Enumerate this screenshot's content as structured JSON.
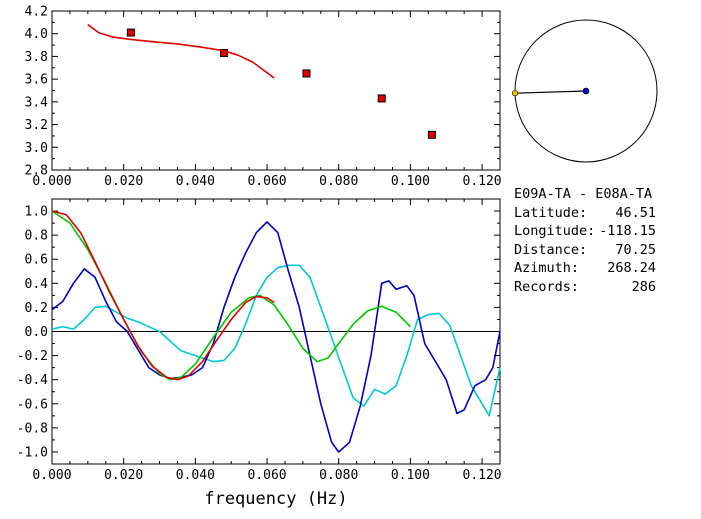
{
  "station": {
    "pair": "E09A-TA  -  E08A-TA",
    "fields": [
      {
        "label": "Latitude:",
        "value": "46.51"
      },
      {
        "label": "Longitude:",
        "value": "-118.15"
      },
      {
        "label": "Distance:",
        "value": "70.25"
      },
      {
        "label": "Azimuth:",
        "value": "268.24"
      },
      {
        "label": "Records:",
        "value": "286"
      }
    ]
  },
  "chart_data": [
    {
      "type": "scatter",
      "xlim": [
        0.0,
        0.125
      ],
      "ylim": [
        2.8,
        4.2
      ],
      "x_ticks": [
        "0.000",
        "0.020",
        "0.040",
        "0.060",
        "0.080",
        "0.100",
        "0.120"
      ],
      "y_ticks": [
        "2.8",
        "3.0",
        "3.2",
        "3.4",
        "3.6",
        "3.8",
        "4.0",
        "4.2"
      ],
      "series": [
        {
          "style": "markers",
          "color": "#e00000",
          "points": [
            [
              0.022,
              4.01
            ],
            [
              0.048,
              3.83
            ],
            [
              0.071,
              3.65
            ],
            [
              0.092,
              3.43
            ],
            [
              0.106,
              3.11
            ]
          ]
        },
        {
          "style": "line",
          "color": "#e00000",
          "points": [
            [
              0.01,
              4.08
            ],
            [
              0.013,
              4.01
            ],
            [
              0.017,
              3.97
            ],
            [
              0.022,
              3.95
            ],
            [
              0.028,
              3.93
            ],
            [
              0.035,
              3.91
            ],
            [
              0.042,
              3.88
            ],
            [
              0.048,
              3.85
            ],
            [
              0.052,
              3.81
            ],
            [
              0.056,
              3.75
            ],
            [
              0.059,
              3.68
            ],
            [
              0.062,
              3.61
            ]
          ]
        }
      ]
    },
    {
      "type": "line",
      "xlim": [
        0.0,
        0.125
      ],
      "ylim": [
        -1.1,
        1.1
      ],
      "xlabel": "frequency (Hz)",
      "x_ticks": [
        "0.000",
        "0.020",
        "0.040",
        "0.060",
        "0.080",
        "0.100",
        "0.120"
      ],
      "y_ticks": [
        "1.0",
        "0.8",
        "0.6",
        "0.4",
        "0.2",
        "0.0",
        "-0.2",
        "-0.4",
        "-0.6",
        "-0.8",
        "-1.0"
      ],
      "series": [
        {
          "color": "#00c8d8",
          "points": [
            [
              0.0,
              0.02
            ],
            [
              0.003,
              0.04
            ],
            [
              0.006,
              0.02
            ],
            [
              0.009,
              0.1
            ],
            [
              0.012,
              0.2
            ],
            [
              0.015,
              0.21
            ],
            [
              0.018,
              0.16
            ],
            [
              0.021,
              0.11
            ],
            [
              0.024,
              0.08
            ],
            [
              0.027,
              0.04
            ],
            [
              0.03,
              0.0
            ],
            [
              0.033,
              -0.08
            ],
            [
              0.036,
              -0.16
            ],
            [
              0.039,
              -0.19
            ],
            [
              0.042,
              -0.22
            ],
            [
              0.045,
              -0.25
            ],
            [
              0.048,
              -0.24
            ],
            [
              0.051,
              -0.14
            ],
            [
              0.054,
              0.06
            ],
            [
              0.057,
              0.3
            ],
            [
              0.06,
              0.45
            ],
            [
              0.063,
              0.53
            ],
            [
              0.066,
              0.55
            ],
            [
              0.069,
              0.55
            ],
            [
              0.072,
              0.45
            ],
            [
              0.075,
              0.2
            ],
            [
              0.078,
              -0.05
            ],
            [
              0.081,
              -0.3
            ],
            [
              0.084,
              -0.55
            ],
            [
              0.087,
              -0.62
            ],
            [
              0.09,
              -0.48
            ],
            [
              0.093,
              -0.52
            ],
            [
              0.096,
              -0.45
            ],
            [
              0.099,
              -0.2
            ],
            [
              0.102,
              0.1
            ],
            [
              0.105,
              0.14
            ],
            [
              0.108,
              0.15
            ],
            [
              0.111,
              0.05
            ],
            [
              0.114,
              -0.2
            ],
            [
              0.117,
              -0.45
            ],
            [
              0.12,
              -0.6
            ],
            [
              0.122,
              -0.7
            ],
            [
              0.125,
              -0.3
            ]
          ]
        },
        {
          "color": "#0000c0",
          "points": [
            [
              0.0,
              0.18
            ],
            [
              0.003,
              0.25
            ],
            [
              0.006,
              0.4
            ],
            [
              0.009,
              0.52
            ],
            [
              0.012,
              0.45
            ],
            [
              0.015,
              0.25
            ],
            [
              0.018,
              0.08
            ],
            [
              0.021,
              0.0
            ],
            [
              0.024,
              -0.15
            ],
            [
              0.027,
              -0.3
            ],
            [
              0.03,
              -0.36
            ],
            [
              0.033,
              -0.39
            ],
            [
              0.036,
              -0.38
            ],
            [
              0.039,
              -0.36
            ],
            [
              0.042,
              -0.3
            ],
            [
              0.045,
              -0.1
            ],
            [
              0.048,
              0.2
            ],
            [
              0.051,
              0.45
            ],
            [
              0.054,
              0.65
            ],
            [
              0.057,
              0.82
            ],
            [
              0.06,
              0.91
            ],
            [
              0.063,
              0.82
            ],
            [
              0.066,
              0.5
            ],
            [
              0.069,
              0.2
            ],
            [
              0.072,
              -0.2
            ],
            [
              0.075,
              -0.6
            ],
            [
              0.078,
              -0.92
            ],
            [
              0.08,
              -1.0
            ],
            [
              0.083,
              -0.92
            ],
            [
              0.086,
              -0.62
            ],
            [
              0.089,
              -0.2
            ],
            [
              0.092,
              0.4
            ],
            [
              0.094,
              0.42
            ],
            [
              0.096,
              0.35
            ],
            [
              0.099,
              0.38
            ],
            [
              0.101,
              0.3
            ],
            [
              0.104,
              -0.1
            ],
            [
              0.107,
              -0.25
            ],
            [
              0.11,
              -0.4
            ],
            [
              0.113,
              -0.68
            ],
            [
              0.115,
              -0.65
            ],
            [
              0.118,
              -0.45
            ],
            [
              0.121,
              -0.4
            ],
            [
              0.123,
              -0.3
            ],
            [
              0.125,
              0.0
            ]
          ]
        },
        {
          "color": "#00c800",
          "points": [
            [
              0.0,
              1.0
            ],
            [
              0.005,
              0.9
            ],
            [
              0.01,
              0.68
            ],
            [
              0.015,
              0.4
            ],
            [
              0.02,
              0.1
            ],
            [
              0.025,
              -0.17
            ],
            [
              0.03,
              -0.35
            ],
            [
              0.033,
              -0.4
            ],
            [
              0.036,
              -0.38
            ],
            [
              0.04,
              -0.27
            ],
            [
              0.045,
              -0.05
            ],
            [
              0.05,
              0.16
            ],
            [
              0.055,
              0.28
            ],
            [
              0.058,
              0.3
            ],
            [
              0.062,
              0.22
            ],
            [
              0.066,
              0.05
            ],
            [
              0.07,
              -0.14
            ],
            [
              0.074,
              -0.25
            ],
            [
              0.077,
              -0.22
            ],
            [
              0.08,
              -0.1
            ],
            [
              0.084,
              0.06
            ],
            [
              0.088,
              0.17
            ],
            [
              0.092,
              0.21
            ],
            [
              0.096,
              0.16
            ],
            [
              0.1,
              0.04
            ]
          ]
        },
        {
          "color": "#e00000",
          "points": [
            [
              0.0,
              1.0
            ],
            [
              0.004,
              0.97
            ],
            [
              0.008,
              0.82
            ],
            [
              0.012,
              0.58
            ],
            [
              0.016,
              0.33
            ],
            [
              0.02,
              0.1
            ],
            [
              0.024,
              -0.12
            ],
            [
              0.028,
              -0.29
            ],
            [
              0.032,
              -0.38
            ],
            [
              0.035,
              -0.4
            ],
            [
              0.038,
              -0.37
            ],
            [
              0.042,
              -0.25
            ],
            [
              0.046,
              -0.07
            ],
            [
              0.05,
              0.1
            ],
            [
              0.054,
              0.24
            ],
            [
              0.057,
              0.29
            ],
            [
              0.06,
              0.28
            ],
            [
              0.062,
              0.24
            ]
          ]
        }
      ]
    },
    {
      "type": "polar",
      "angle_deg": 268.24,
      "endpoint_color": "#f0c000",
      "center_color": "#0000c0"
    }
  ]
}
